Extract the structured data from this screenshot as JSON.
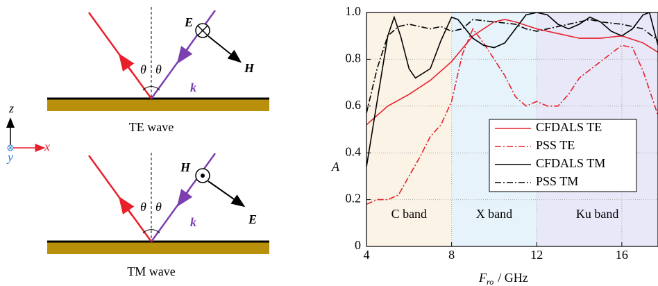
{
  "diagram": {
    "te_panel": {
      "e_label": "E",
      "h_label": "H",
      "k_label": "k",
      "theta_left": "θ",
      "theta_right": "θ",
      "caption": "TE wave"
    },
    "tm_panel": {
      "h_label": "H",
      "e_label": "E",
      "k_label": "k",
      "theta_left": "θ",
      "theta_right": "θ",
      "caption": "TM wave"
    },
    "axes": {
      "z": "z",
      "x": "x",
      "y": "y"
    }
  },
  "chart_data": {
    "type": "line",
    "y_label": "A",
    "x_label": {
      "symbol": "F",
      "subscript": "ro",
      "unit": "/ GHz"
    },
    "xlim": [
      4,
      17.7
    ],
    "xticks": [
      4,
      8,
      12,
      16
    ],
    "ylim": [
      0,
      1
    ],
    "yticks": [
      0,
      0.2,
      0.4,
      0.6,
      0.8,
      {
        "value": 1,
        "label": "1.0"
      }
    ],
    "grid": true,
    "bands": [
      {
        "label": "C band",
        "from": 4,
        "to": 8,
        "color": "#fbf3e6"
      },
      {
        "label": "X band",
        "from": 8,
        "to": 12,
        "color": "#e6f3fb"
      },
      {
        "label": "Ku band",
        "from": 12,
        "to": 17.7,
        "color": "#e8e8f8"
      }
    ],
    "series": [
      {
        "name": "CFDALS TE",
        "color": "#e8202a",
        "dash": "solid",
        "x": [
          4,
          5,
          6,
          7,
          8,
          9,
          10,
          10.5,
          11,
          12,
          13,
          14,
          15,
          16,
          17,
          17.7
        ],
        "values": [
          0.52,
          0.6,
          0.65,
          0.71,
          0.79,
          0.9,
          0.96,
          0.97,
          0.96,
          0.93,
          0.91,
          0.89,
          0.89,
          0.9,
          0.87,
          0.83
        ]
      },
      {
        "name": "PSS TE",
        "color": "#e8202a",
        "dash": "dashdot",
        "x": [
          4,
          4.5,
          5,
          5.5,
          6,
          6.5,
          7,
          7.5,
          8,
          8.5,
          9,
          9.5,
          10,
          10.5,
          11,
          11.5,
          12,
          12.5,
          13,
          13.5,
          14,
          15,
          16,
          16.5,
          17,
          17.7
        ],
        "values": [
          0.18,
          0.2,
          0.2,
          0.22,
          0.3,
          0.38,
          0.47,
          0.52,
          0.62,
          0.82,
          0.93,
          0.87,
          0.8,
          0.73,
          0.64,
          0.6,
          0.62,
          0.6,
          0.6,
          0.65,
          0.72,
          0.79,
          0.86,
          0.85,
          0.75,
          0.56
        ]
      },
      {
        "name": "CFDALS TM",
        "color": "#000000",
        "dash": "solid",
        "x": [
          4,
          4.5,
          5,
          5.3,
          5.6,
          6,
          6.3,
          7,
          7.5,
          8,
          8.3,
          9,
          9.5,
          10,
          10.5,
          11,
          11.5,
          12,
          12.5,
          13,
          13.5,
          14,
          14.5,
          15,
          15.5,
          16,
          16.5,
          17,
          17.3,
          17.7
        ],
        "values": [
          0.34,
          0.62,
          0.9,
          0.98,
          0.9,
          0.76,
          0.72,
          0.76,
          0.88,
          0.98,
          0.97,
          0.89,
          0.86,
          0.85,
          0.87,
          0.93,
          0.99,
          1.0,
          0.99,
          0.95,
          0.93,
          0.95,
          0.98,
          0.96,
          0.92,
          0.9,
          0.93,
          0.99,
          1.0,
          0.86
        ]
      },
      {
        "name": "PSS TM",
        "color": "#000000",
        "dash": "dashdot",
        "x": [
          4,
          4.5,
          5,
          5.5,
          6,
          6.5,
          7,
          7.5,
          8,
          8.5,
          9,
          10,
          11,
          11.5,
          12,
          13,
          14,
          14.5,
          15,
          16,
          17,
          17.7
        ],
        "values": [
          0.57,
          0.76,
          0.9,
          0.94,
          0.95,
          0.94,
          0.93,
          0.94,
          0.92,
          0.93,
          0.97,
          0.96,
          0.95,
          0.93,
          0.92,
          0.94,
          0.96,
          0.97,
          0.96,
          0.95,
          0.93,
          0.88
        ]
      }
    ]
  }
}
